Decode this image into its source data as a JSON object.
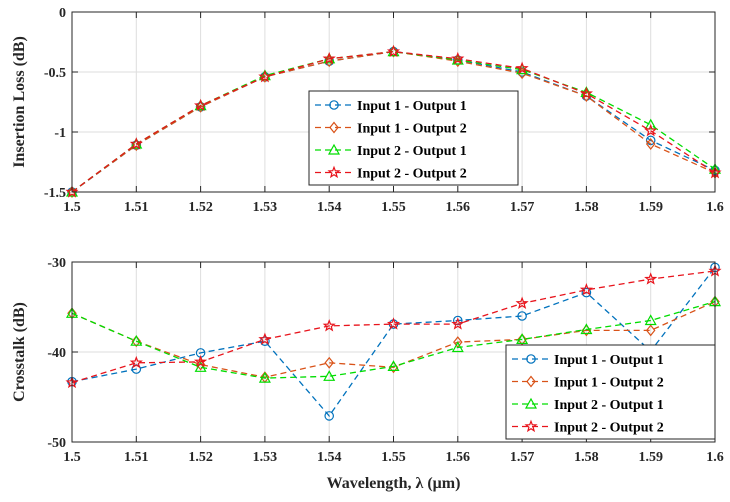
{
  "chart_data": [
    {
      "type": "line",
      "xlabel": "",
      "ylabel": "Insertion Loss (dB)",
      "xlim": [
        1.5,
        1.6
      ],
      "ylim": [
        -1.5,
        0
      ],
      "x": [
        1.5,
        1.51,
        1.52,
        1.53,
        1.54,
        1.55,
        1.56,
        1.57,
        1.58,
        1.59,
        1.6
      ],
      "xticks": [
        "1.5",
        "1.51",
        "1.52",
        "1.53",
        "1.54",
        "1.55",
        "1.56",
        "1.57",
        "1.58",
        "1.59",
        "1.6"
      ],
      "yticks": [
        {
          "v": -1.5,
          "t": "-1.5"
        },
        {
          "v": -1,
          "t": "-1"
        },
        {
          "v": -0.5,
          "t": "-0.5"
        },
        {
          "v": 0,
          "t": "0"
        }
      ],
      "grid": true,
      "legend": "center-right",
      "series": [
        {
          "name": "Input 1 - Output 1",
          "color": "#0072BD",
          "marker": "circle",
          "values": [
            -1.5,
            -1.11,
            -0.79,
            -0.54,
            -0.41,
            -0.33,
            -0.4,
            -0.5,
            -0.7,
            -1.07,
            -1.32
          ]
        },
        {
          "name": "Input 1 - Output 2",
          "color": "#D95319",
          "marker": "diamond",
          "values": [
            -1.5,
            -1.11,
            -0.79,
            -0.54,
            -0.41,
            -0.33,
            -0.41,
            -0.51,
            -0.7,
            -1.1,
            -1.34
          ]
        },
        {
          "name": "Input 2 - Output 1",
          "color": "#00DD00",
          "marker": "triangle",
          "values": [
            -1.5,
            -1.1,
            -0.78,
            -0.53,
            -0.39,
            -0.33,
            -0.4,
            -0.48,
            -0.67,
            -0.94,
            -1.31
          ]
        },
        {
          "name": "Input 2 - Output 2",
          "color": "#E8141C",
          "marker": "star",
          "values": [
            -1.5,
            -1.1,
            -0.78,
            -0.54,
            -0.39,
            -0.33,
            -0.39,
            -0.47,
            -0.68,
            -0.99,
            -1.34
          ]
        }
      ]
    },
    {
      "type": "line",
      "xlabel": "Wavelength, λ (μm)",
      "ylabel": "Crosstalk (dB)",
      "xlim": [
        1.5,
        1.6
      ],
      "ylim": [
        -50,
        -30
      ],
      "x": [
        1.5,
        1.51,
        1.52,
        1.53,
        1.54,
        1.55,
        1.56,
        1.57,
        1.58,
        1.59,
        1.6
      ],
      "xticks": [
        "1.5",
        "1.51",
        "1.52",
        "1.53",
        "1.54",
        "1.55",
        "1.56",
        "1.57",
        "1.58",
        "1.59",
        "1.6"
      ],
      "yticks": [
        {
          "v": -50,
          "t": "-50"
        },
        {
          "v": -40,
          "t": "-40"
        },
        {
          "v": -30,
          "t": "-30"
        }
      ],
      "grid": true,
      "legend": "bottom-right",
      "series": [
        {
          "name": "Input 1 - Output 1",
          "color": "#0072BD",
          "marker": "circle",
          "values": [
            -43.3,
            -41.9,
            -40.1,
            -38.8,
            -47.1,
            -36.9,
            -36.5,
            -36.0,
            -33.4,
            -39.9,
            -30.6
          ]
        },
        {
          "name": "Input 1 - Output 2",
          "color": "#D95319",
          "marker": "diamond",
          "values": [
            -35.7,
            -38.8,
            -41.4,
            -42.8,
            -41.2,
            -41.7,
            -38.9,
            -38.6,
            -37.6,
            -37.6,
            -34.4
          ]
        },
        {
          "name": "Input 2 - Output 1",
          "color": "#00DD00",
          "marker": "triangle",
          "values": [
            -35.7,
            -38.8,
            -41.7,
            -42.9,
            -42.7,
            -41.6,
            -39.5,
            -38.6,
            -37.5,
            -36.5,
            -34.4
          ]
        },
        {
          "name": "Input 2 - Output 2",
          "color": "#E8141C",
          "marker": "star",
          "values": [
            -43.4,
            -41.2,
            -41.1,
            -38.6,
            -37.1,
            -36.9,
            -36.9,
            -34.6,
            -33.1,
            -31.9,
            -31.0
          ]
        }
      ]
    }
  ]
}
